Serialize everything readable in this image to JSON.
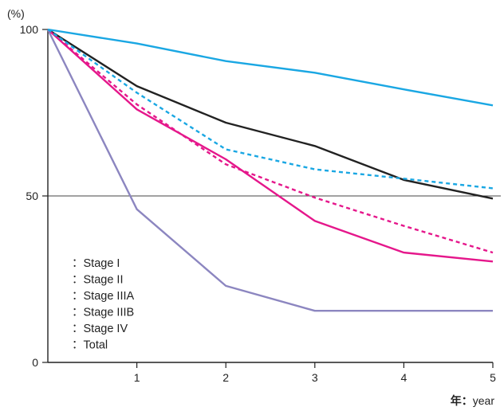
{
  "chart_data": {
    "type": "line",
    "ylabel": "(%)",
    "xlabel_bold": "年：",
    "xlabel_rest": "year",
    "x": [
      0,
      1,
      2,
      3,
      4,
      5
    ],
    "xticks": [
      1,
      2,
      3,
      4,
      5
    ],
    "xlim": [
      0,
      5
    ],
    "yticks": [
      0,
      50,
      100
    ],
    "ylim": [
      0,
      100
    ],
    "reference_line": 50,
    "legend_position": "bottom-left",
    "series": [
      {
        "name": "：Stage I",
        "color": "#1aa7e3",
        "style": "solid",
        "values": [
          100,
          95.8,
          90.5,
          87.0,
          82.0,
          77.2
        ]
      },
      {
        "name": "：Stage II",
        "color": "#1aa7e3",
        "style": "dashed",
        "values": [
          100,
          81.0,
          64.0,
          58.0,
          55.2,
          52.3
        ]
      },
      {
        "name": "：Stage IIIA",
        "color": "#e5178b",
        "style": "solid",
        "values": [
          100,
          76.0,
          61.0,
          42.5,
          33.0,
          30.3
        ]
      },
      {
        "name": "：Stage IIIB",
        "color": "#e5178b",
        "style": "dashed",
        "values": [
          100,
          77.5,
          59.5,
          49.5,
          41.0,
          33.0
        ]
      },
      {
        "name": "：Stage IV",
        "color": "#8c86c0",
        "style": "solid",
        "values": [
          100,
          46.0,
          23.0,
          15.5,
          15.5,
          15.5
        ]
      },
      {
        "name": "：Total",
        "color": "#222222",
        "style": "solid",
        "values": [
          100,
          83.0,
          72.0,
          65.0,
          54.8,
          49.2
        ]
      }
    ]
  }
}
